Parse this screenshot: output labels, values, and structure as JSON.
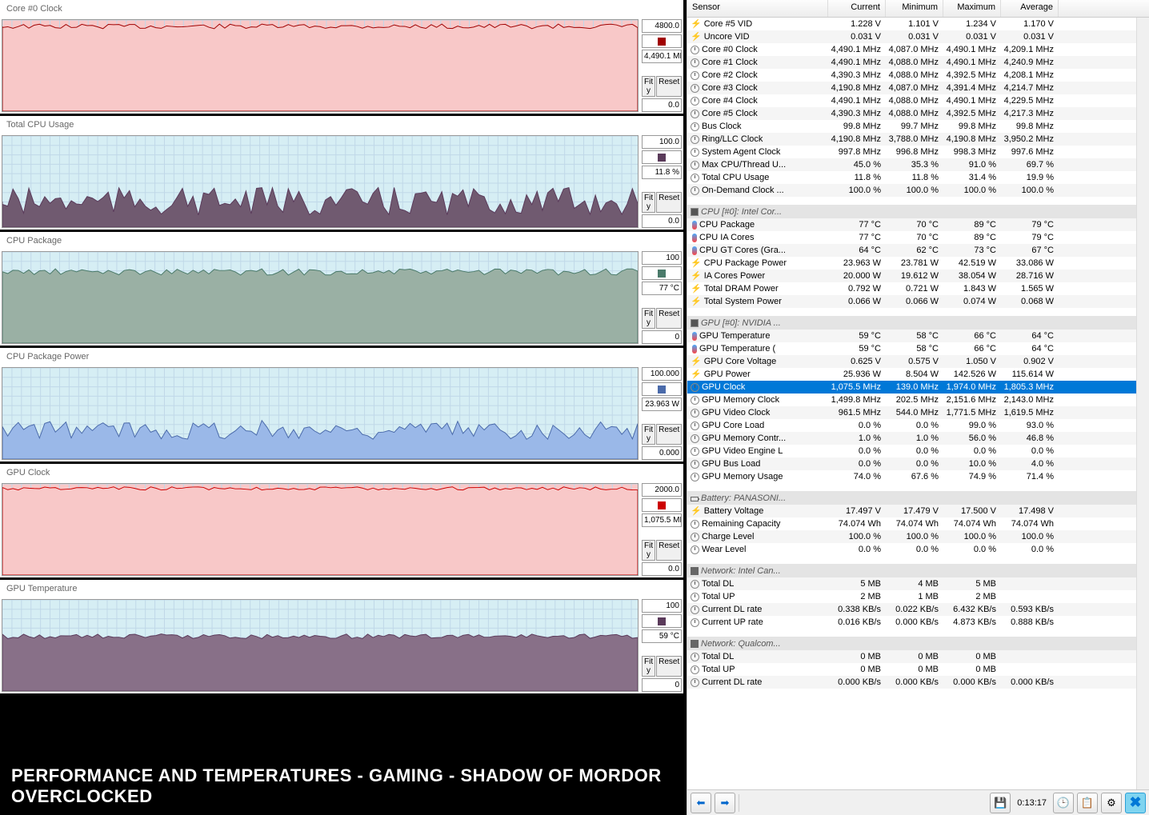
{
  "banner": "PERFORMANCE AND TEMPERATURES - GAMING - SHADOW OF MORDOR OVERCLOCKED",
  "charts": [
    {
      "title": "Core #0 Clock",
      "max": "4800.0",
      "current": "4,490.1 MH",
      "zero": "0.0",
      "color": "#a00000",
      "bg": "#f8c8c8",
      "fill_bg": "#f8c8c8",
      "fill_pct": 93,
      "jag": 3
    },
    {
      "title": "Total CPU Usage",
      "max": "100.0",
      "current": "11.8 %",
      "zero": "0.0",
      "color": "#5a3a5a",
      "bg": "#d6eef4",
      "fill_bg": "#705a70",
      "fill_pct": 28,
      "jag": 18
    },
    {
      "title": "CPU Package",
      "max": "100",
      "current": "77 °C",
      "zero": "0",
      "color": "#4a7a6a",
      "bg": "#d6eef4",
      "fill_bg": "#9ab0a4",
      "fill_pct": 78,
      "jag": 4
    },
    {
      "title": "CPU Package Power",
      "max": "100.000",
      "current": "23.963 W",
      "zero": "0.000",
      "color": "#4a6aaa",
      "bg": "#d6eef4",
      "fill_bg": "#9ab8e8",
      "fill_pct": 32,
      "jag": 12
    },
    {
      "title": "GPU Clock",
      "max": "2000.0",
      "current": "1,075.5 MH",
      "zero": "0.0",
      "color": "#cc0000",
      "bg": "#f8c8c8",
      "fill_bg": "#f8c8c8",
      "fill_pct": 95,
      "jag": 2
    },
    {
      "title": "GPU Temperature",
      "max": "100",
      "current": "59 °C",
      "zero": "0",
      "color": "#5a3a5a",
      "bg": "#d6eef4",
      "fill_bg": "#887088",
      "fill_pct": 60,
      "jag": 3
    }
  ],
  "buttons": {
    "fit": "Fit y",
    "reset": "Reset"
  },
  "headers": {
    "sensor": "Sensor",
    "current": "Current",
    "min": "Minimum",
    "max": "Maximum",
    "avg": "Average"
  },
  "sensors": [
    {
      "t": "r",
      "ic": "bolt",
      "n": "Core #5 VID",
      "c": "1.228 V",
      "mn": "1.101 V",
      "mx": "1.234 V",
      "av": "1.170 V"
    },
    {
      "t": "r",
      "ic": "bolt",
      "n": "Uncore VID",
      "c": "0.031 V",
      "mn": "0.031 V",
      "mx": "0.031 V",
      "av": "0.031 V"
    },
    {
      "t": "r",
      "ic": "clock",
      "n": "Core #0 Clock",
      "c": "4,490.1 MHz",
      "mn": "4,087.0 MHz",
      "mx": "4,490.1 MHz",
      "av": "4,209.1 MHz"
    },
    {
      "t": "r",
      "ic": "clock",
      "n": "Core #1 Clock",
      "c": "4,490.1 MHz",
      "mn": "4,088.0 MHz",
      "mx": "4,490.1 MHz",
      "av": "4,240.9 MHz"
    },
    {
      "t": "r",
      "ic": "clock",
      "n": "Core #2 Clock",
      "c": "4,390.3 MHz",
      "mn": "4,088.0 MHz",
      "mx": "4,392.5 MHz",
      "av": "4,208.1 MHz"
    },
    {
      "t": "r",
      "ic": "clock",
      "n": "Core #3 Clock",
      "c": "4,190.8 MHz",
      "mn": "4,087.0 MHz",
      "mx": "4,391.4 MHz",
      "av": "4,214.7 MHz"
    },
    {
      "t": "r",
      "ic": "clock",
      "n": "Core #4 Clock",
      "c": "4,490.1 MHz",
      "mn": "4,088.0 MHz",
      "mx": "4,490.1 MHz",
      "av": "4,229.5 MHz"
    },
    {
      "t": "r",
      "ic": "clock",
      "n": "Core #5 Clock",
      "c": "4,390.3 MHz",
      "mn": "4,088.0 MHz",
      "mx": "4,392.5 MHz",
      "av": "4,217.3 MHz"
    },
    {
      "t": "r",
      "ic": "clock",
      "n": "Bus Clock",
      "c": "99.8 MHz",
      "mn": "99.7 MHz",
      "mx": "99.8 MHz",
      "av": "99.8 MHz"
    },
    {
      "t": "r",
      "ic": "clock",
      "n": "Ring/LLC Clock",
      "c": "4,190.8 MHz",
      "mn": "3,788.0 MHz",
      "mx": "4,190.8 MHz",
      "av": "3,950.2 MHz"
    },
    {
      "t": "r",
      "ic": "clock",
      "n": "System Agent Clock",
      "c": "997.8 MHz",
      "mn": "996.8 MHz",
      "mx": "998.3 MHz",
      "av": "997.6 MHz"
    },
    {
      "t": "r",
      "ic": "clock",
      "n": "Max CPU/Thread U...",
      "c": "45.0 %",
      "mn": "35.3 %",
      "mx": "91.0 %",
      "av": "69.7 %"
    },
    {
      "t": "r",
      "ic": "clock",
      "n": "Total CPU Usage",
      "c": "11.8 %",
      "mn": "11.8 %",
      "mx": "31.4 %",
      "av": "19.9 %"
    },
    {
      "t": "r",
      "ic": "clock",
      "n": "On-Demand Clock ...",
      "c": "100.0 %",
      "mn": "100.0 %",
      "mx": "100.0 %",
      "av": "100.0 %"
    },
    {
      "t": "spacer"
    },
    {
      "t": "g",
      "ic": "chip",
      "n": "CPU [#0]: Intel Cor..."
    },
    {
      "t": "r",
      "ic": "temp",
      "n": "CPU Package",
      "c": "77 °C",
      "mn": "70 °C",
      "mx": "89 °C",
      "av": "79 °C"
    },
    {
      "t": "r",
      "ic": "temp",
      "n": "CPU IA Cores",
      "c": "77 °C",
      "mn": "70 °C",
      "mx": "89 °C",
      "av": "79 °C"
    },
    {
      "t": "r",
      "ic": "temp",
      "n": "CPU GT Cores (Gra...",
      "c": "64 °C",
      "mn": "62 °C",
      "mx": "73 °C",
      "av": "67 °C"
    },
    {
      "t": "r",
      "ic": "bolt",
      "n": "CPU Package Power",
      "c": "23.963 W",
      "mn": "23.781 W",
      "mx": "42.519 W",
      "av": "33.086 W"
    },
    {
      "t": "r",
      "ic": "bolt",
      "n": "IA Cores Power",
      "c": "20.000 W",
      "mn": "19.612 W",
      "mx": "38.054 W",
      "av": "28.716 W"
    },
    {
      "t": "r",
      "ic": "bolt",
      "n": "Total DRAM Power",
      "c": "0.792 W",
      "mn": "0.721 W",
      "mx": "1.843 W",
      "av": "1.565 W"
    },
    {
      "t": "r",
      "ic": "bolt",
      "n": "Total System Power",
      "c": "0.066 W",
      "mn": "0.066 W",
      "mx": "0.074 W",
      "av": "0.068 W"
    },
    {
      "t": "spacer"
    },
    {
      "t": "g",
      "ic": "chip",
      "n": "GPU [#0]: NVIDIA ..."
    },
    {
      "t": "r",
      "ic": "temp",
      "n": "GPU Temperature",
      "c": "59 °C",
      "mn": "58 °C",
      "mx": "66 °C",
      "av": "64 °C"
    },
    {
      "t": "r",
      "ic": "temp",
      "n": "GPU Temperature (",
      "c": "59 °C",
      "mn": "58 °C",
      "mx": "66 °C",
      "av": "64 °C"
    },
    {
      "t": "r",
      "ic": "bolt",
      "n": "GPU Core Voltage",
      "c": "0.625 V",
      "mn": "0.575 V",
      "mx": "1.050 V",
      "av": "0.902 V"
    },
    {
      "t": "r",
      "ic": "bolt",
      "n": "GPU Power",
      "c": "25.936 W",
      "mn": "8.504 W",
      "mx": "142.526 W",
      "av": "115.614 W"
    },
    {
      "t": "r",
      "sel": true,
      "ic": "clock",
      "n": "GPU Clock",
      "c": "1,075.5 MHz",
      "mn": "139.0 MHz",
      "mx": "1,974.0 MHz",
      "av": "1,805.3 MHz"
    },
    {
      "t": "r",
      "ic": "clock",
      "n": "GPU Memory Clock",
      "c": "1,499.8 MHz",
      "mn": "202.5 MHz",
      "mx": "2,151.6 MHz",
      "av": "2,143.0 MHz"
    },
    {
      "t": "r",
      "ic": "clock",
      "n": "GPU Video Clock",
      "c": "961.5 MHz",
      "mn": "544.0 MHz",
      "mx": "1,771.5 MHz",
      "av": "1,619.5 MHz"
    },
    {
      "t": "r",
      "ic": "clock",
      "n": "GPU Core Load",
      "c": "0.0 %",
      "mn": "0.0 %",
      "mx": "99.0 %",
      "av": "93.0 %"
    },
    {
      "t": "r",
      "ic": "clock",
      "n": "GPU Memory Contr...",
      "c": "1.0 %",
      "mn": "1.0 %",
      "mx": "56.0 %",
      "av": "46.8 %"
    },
    {
      "t": "r",
      "ic": "clock",
      "n": "GPU Video Engine L",
      "c": "0.0 %",
      "mn": "0.0 %",
      "mx": "0.0 %",
      "av": "0.0 %"
    },
    {
      "t": "r",
      "ic": "clock",
      "n": "GPU Bus Load",
      "c": "0.0 %",
      "mn": "0.0 %",
      "mx": "10.0 %",
      "av": "4.0 %"
    },
    {
      "t": "r",
      "ic": "clock",
      "n": "GPU Memory Usage",
      "c": "74.0 %",
      "mn": "67.6 %",
      "mx": "74.9 %",
      "av": "71.4 %"
    },
    {
      "t": "spacer"
    },
    {
      "t": "g",
      "ic": "bat",
      "n": "Battery: PANASONI..."
    },
    {
      "t": "r",
      "ic": "bolt",
      "n": "Battery Voltage",
      "c": "17.497 V",
      "mn": "17.479 V",
      "mx": "17.500 V",
      "av": "17.498 V"
    },
    {
      "t": "r",
      "ic": "clock",
      "n": "Remaining Capacity",
      "c": "74.074 Wh",
      "mn": "74.074 Wh",
      "mx": "74.074 Wh",
      "av": "74.074 Wh"
    },
    {
      "t": "r",
      "ic": "clock",
      "n": "Charge Level",
      "c": "100.0 %",
      "mn": "100.0 %",
      "mx": "100.0 %",
      "av": "100.0 %"
    },
    {
      "t": "r",
      "ic": "clock",
      "n": "Wear Level",
      "c": "0.0 %",
      "mn": "0.0 %",
      "mx": "0.0 %",
      "av": "0.0 %"
    },
    {
      "t": "spacer"
    },
    {
      "t": "g",
      "ic": "net",
      "n": "Network: Intel Can..."
    },
    {
      "t": "r",
      "ic": "clock",
      "n": "Total DL",
      "c": "5 MB",
      "mn": "4 MB",
      "mx": "5 MB",
      "av": ""
    },
    {
      "t": "r",
      "ic": "clock",
      "n": "Total UP",
      "c": "2 MB",
      "mn": "1 MB",
      "mx": "2 MB",
      "av": ""
    },
    {
      "t": "r",
      "ic": "clock",
      "n": "Current DL rate",
      "c": "0.338 KB/s",
      "mn": "0.022 KB/s",
      "mx": "6.432 KB/s",
      "av": "0.593 KB/s"
    },
    {
      "t": "r",
      "ic": "clock",
      "n": "Current UP rate",
      "c": "0.016 KB/s",
      "mn": "0.000 KB/s",
      "mx": "4.873 KB/s",
      "av": "0.888 KB/s"
    },
    {
      "t": "spacer"
    },
    {
      "t": "g",
      "ic": "net",
      "n": "Network: Qualcom..."
    },
    {
      "t": "r",
      "ic": "clock",
      "n": "Total DL",
      "c": "0 MB",
      "mn": "0 MB",
      "mx": "0 MB",
      "av": ""
    },
    {
      "t": "r",
      "ic": "clock",
      "n": "Total UP",
      "c": "0 MB",
      "mn": "0 MB",
      "mx": "0 MB",
      "av": ""
    },
    {
      "t": "r",
      "ic": "clock",
      "n": "Current DL rate",
      "c": "0.000 KB/s",
      "mn": "0.000 KB/s",
      "mx": "0.000 KB/s",
      "av": "0.000 KB/s"
    }
  ],
  "toolbar": {
    "time": "0:13:17"
  }
}
